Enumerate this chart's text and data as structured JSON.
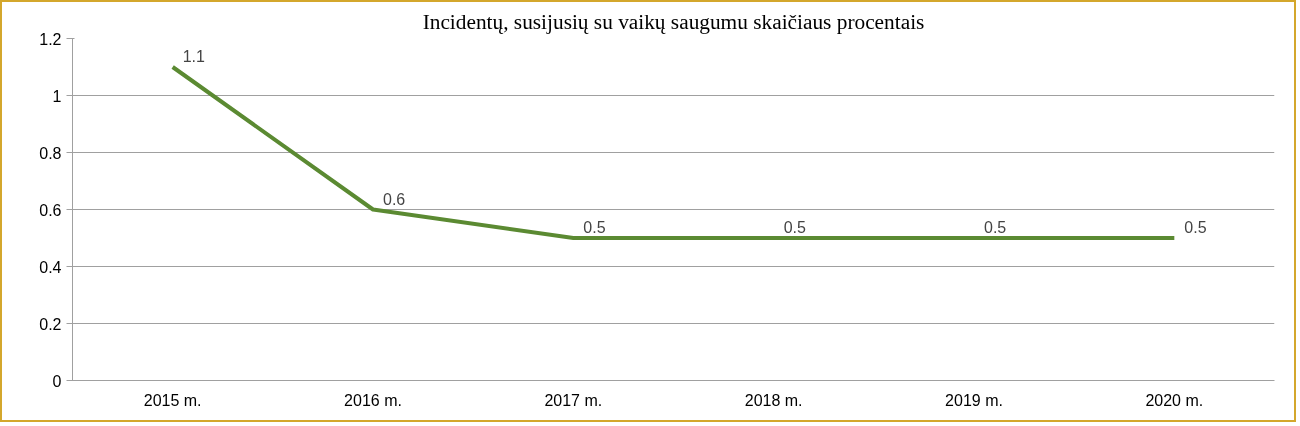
{
  "chart_data": {
    "type": "line",
    "title": "Incidentų, susijusių su vaikų saugumu skaičiaus procentais",
    "categories": [
      "2015 m.",
      "2016 m.",
      "2017 m.",
      "2018 m.",
      "2019 m.",
      "2020 m."
    ],
    "series": [
      {
        "color": "#5b8a32",
        "values": [
          1.1,
          0.6,
          0.5,
          0.5,
          0.5,
          0.5
        ]
      }
    ],
    "ylim": [
      0,
      1.2
    ],
    "yticks": [
      0,
      0.2,
      0.4,
      0.6,
      0.8,
      1,
      1.2
    ],
    "grid": "y",
    "data_labels": true,
    "marker": "none",
    "line_style": "solid"
  }
}
